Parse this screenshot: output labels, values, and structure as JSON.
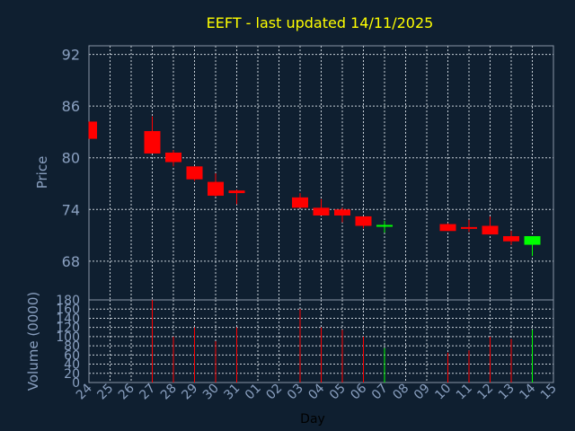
{
  "chart_data": {
    "type": "candlestick",
    "title": "EEFT - last updated 14/11/2025",
    "xlabel": "Day",
    "price_ylabel": "Price",
    "volume_ylabel": "Volume (0000)",
    "x_ticks": [
      "24",
      "25",
      "26",
      "27",
      "28",
      "29",
      "30",
      "31",
      "01",
      "02",
      "03",
      "04",
      "05",
      "06",
      "07",
      "08",
      "09",
      "10",
      "11",
      "12",
      "13",
      "14",
      "15"
    ],
    "price_ylim": [
      63.5,
      93
    ],
    "price_ticks": [
      92,
      86,
      80,
      74,
      68
    ],
    "volume_ylim": [
      0,
      180
    ],
    "volume_ticks": [
      180,
      160,
      140,
      120,
      100,
      80,
      60,
      40,
      20,
      0
    ],
    "grid": true,
    "up_color": "#00ff00",
    "down_color": "#ff0000",
    "candles": [
      {
        "day": "24",
        "open": 84.2,
        "high": 84.2,
        "low": 82.2,
        "close": 82.2,
        "volume": 0
      },
      {
        "day": "27",
        "open": 83.1,
        "high": 84.8,
        "low": 80.5,
        "close": 80.5,
        "volume": 180
      },
      {
        "day": "28",
        "open": 80.6,
        "high": 80.9,
        "low": 79.0,
        "close": 79.5,
        "volume": 100
      },
      {
        "day": "29",
        "open": 79.0,
        "high": 79.0,
        "low": 77.3,
        "close": 77.5,
        "volume": 120
      },
      {
        "day": "30",
        "open": 77.2,
        "high": 78.2,
        "low": 75.5,
        "close": 75.6,
        "volume": 90
      },
      {
        "day": "31",
        "open": 76.2,
        "high": 76.3,
        "low": 74.6,
        "close": 75.9,
        "volume": 120
      },
      {
        "day": "03",
        "open": 75.4,
        "high": 75.9,
        "low": 74.2,
        "close": 74.2,
        "volume": 160
      },
      {
        "day": "04",
        "open": 74.2,
        "high": 75.2,
        "low": 73.3,
        "close": 73.3,
        "volume": 120
      },
      {
        "day": "05",
        "open": 74.0,
        "high": 74.2,
        "low": 72.5,
        "close": 73.3,
        "volume": 115
      },
      {
        "day": "06",
        "open": 73.2,
        "high": 73.2,
        "low": 71.8,
        "close": 72.1,
        "volume": 100
      },
      {
        "day": "07",
        "open": 72.0,
        "high": 72.7,
        "low": 71.3,
        "close": 72.2,
        "volume": 75
      },
      {
        "day": "10",
        "open": 72.3,
        "high": 72.4,
        "low": 71.5,
        "close": 71.5,
        "volume": 65
      },
      {
        "day": "11",
        "open": 71.9,
        "high": 72.8,
        "low": 71.4,
        "close": 71.8,
        "volume": 70
      },
      {
        "day": "12",
        "open": 72.1,
        "high": 73.2,
        "low": 71.1,
        "close": 71.1,
        "volume": 100
      },
      {
        "day": "13",
        "open": 70.9,
        "high": 71.5,
        "low": 69.9,
        "close": 70.3,
        "volume": 95
      },
      {
        "day": "14",
        "open": 69.9,
        "high": 70.9,
        "low": 68.6,
        "close": 70.9,
        "volume": 115
      }
    ]
  }
}
